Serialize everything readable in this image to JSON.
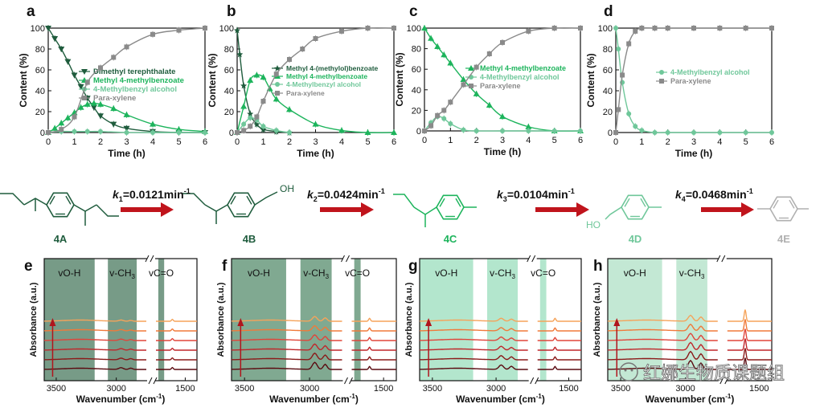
{
  "colors": {
    "dark_green": "#1f5c3d",
    "green": "#1db45c",
    "light_green": "#6fc79a",
    "grey": "#8a8a8a",
    "arrow_red": "#c0141c",
    "band_dark": "#5f8a72",
    "band_mid": "#8fc3a5",
    "band_light": "#a6e2c4"
  },
  "scheme": {
    "compounds": [
      {
        "label": "4A",
        "color": "#1f5c3d"
      },
      {
        "label": "4B",
        "color": "#1f5c3d"
      },
      {
        "label": "4C",
        "color": "#1db45c"
      },
      {
        "label": "4D",
        "color": "#6fc79a"
      },
      {
        "label": "4E",
        "color": "#b0b0b0"
      }
    ],
    "rates": [
      {
        "k": "k",
        "sub": "1",
        "value": "=0.0121min",
        "sup": "-1"
      },
      {
        "k": "k",
        "sub": "2",
        "value": "=0.0424min",
        "sup": "-1"
      },
      {
        "k": "k",
        "sub": "3",
        "value": "=0.0104min",
        "sup": "-1"
      },
      {
        "k": "k",
        "sub": "4",
        "value": "=0.0468min",
        "sup": "-1"
      }
    ],
    "oh_label": "OH",
    "ho_label": "HO"
  },
  "watermark": "红娜生物质课题组",
  "chart_data": [
    {
      "panel": "a",
      "type": "line",
      "xlabel": "Time (h)",
      "ylabel": "Content (%)",
      "xlim": [
        0,
        6
      ],
      "ylim": [
        0,
        100
      ],
      "xticks": [
        0,
        1,
        2,
        3,
        4,
        5,
        6
      ],
      "yticks": [
        0,
        20,
        40,
        60,
        80,
        100
      ],
      "legend_position": "center-right",
      "series": [
        {
          "name": "Dimethyl terephthalate",
          "color": "#1f5c3d",
          "marker": "tri-down",
          "x": [
            0,
            0.25,
            0.5,
            0.75,
            1,
            1.25,
            1.5,
            1.75,
            2,
            2.5,
            3,
            4,
            5,
            6
          ],
          "y": [
            100,
            90,
            80,
            68,
            55,
            44,
            33,
            24,
            16,
            8,
            4,
            1,
            0,
            0
          ]
        },
        {
          "name": "Methyl 4-methylbenzoate",
          "color": "#1db45c",
          "marker": "tri-up",
          "x": [
            0,
            0.25,
            0.5,
            0.75,
            1,
            1.25,
            1.5,
            1.75,
            2,
            2.5,
            3,
            4,
            5,
            6
          ],
          "y": [
            0,
            4,
            9,
            14,
            19,
            24,
            27,
            28,
            27,
            23,
            17,
            8,
            3,
            1
          ]
        },
        {
          "name": "4-Methylbenzyl alcohol",
          "color": "#6fc79a",
          "marker": "circle",
          "x": [
            0,
            0.5,
            1,
            1.5,
            2,
            3,
            4,
            5,
            6
          ],
          "y": [
            0,
            1,
            1,
            1,
            1,
            0,
            0,
            0,
            0
          ]
        },
        {
          "name": "Para-xylene",
          "color": "#8a8a8a",
          "marker": "square",
          "x": [
            0,
            0.5,
            1,
            1.5,
            2,
            2.5,
            3,
            4,
            5,
            6
          ],
          "y": [
            0,
            3,
            15,
            48,
            62,
            72,
            82,
            94,
            98,
            100
          ]
        }
      ]
    },
    {
      "panel": "b",
      "type": "line",
      "xlabel": "Time (h)",
      "ylabel": "Content (%)",
      "xlim": [
        0,
        6
      ],
      "ylim": [
        0,
        100
      ],
      "xticks": [
        0,
        1,
        2,
        3,
        4,
        5,
        6
      ],
      "yticks": [
        0,
        20,
        40,
        60,
        80,
        100
      ],
      "legend_position": "top-right",
      "series": [
        {
          "name": "Methyl 4-(methylol)benzoate",
          "color": "#1f5c3d",
          "marker": "star",
          "x": [
            0,
            0.1,
            0.25,
            0.5,
            0.75,
            1,
            1.5,
            2
          ],
          "y": [
            98,
            75,
            45,
            18,
            8,
            3,
            1,
            0
          ]
        },
        {
          "name": "Methyl 4-methylbenzoate",
          "color": "#1db45c",
          "marker": "tri-up",
          "x": [
            0,
            0.25,
            0.5,
            0.75,
            1,
            1.25,
            1.5,
            2,
            3,
            4,
            5,
            6
          ],
          "y": [
            0,
            25,
            50,
            55,
            53,
            42,
            32,
            22,
            8,
            2,
            0,
            0
          ]
        },
        {
          "name": "4-Methylbenzyl alcohol",
          "color": "#6fc79a",
          "marker": "circle",
          "x": [
            0,
            0.25,
            0.5,
            0.75,
            1,
            1.5,
            2
          ],
          "y": [
            0,
            8,
            14,
            12,
            6,
            2,
            0
          ]
        },
        {
          "name": "Para-xylene",
          "color": "#8a8a8a",
          "marker": "square",
          "x": [
            0,
            0.25,
            0.5,
            0.75,
            1,
            1.5,
            2,
            2.5,
            3,
            4,
            5,
            6
          ],
          "y": [
            0,
            2,
            6,
            15,
            30,
            56,
            70,
            80,
            90,
            97,
            100,
            100
          ]
        }
      ]
    },
    {
      "panel": "c",
      "type": "line",
      "xlabel": "Time (h)",
      "ylabel": "Content (%)",
      "xlim": [
        0,
        6
      ],
      "ylim": [
        0,
        100
      ],
      "xticks": [
        0,
        1,
        2,
        3,
        4,
        5,
        6
      ],
      "yticks": [
        0,
        20,
        40,
        60,
        80,
        100
      ],
      "legend_position": "center-right",
      "series": [
        {
          "name": "Methyl 4-methylbenzoate",
          "color": "#1db45c",
          "marker": "tri-up",
          "x": [
            0,
            0.25,
            0.5,
            0.75,
            1,
            1.5,
            2,
            2.5,
            3,
            4,
            5,
            6
          ],
          "y": [
            100,
            90,
            82,
            74,
            66,
            50,
            36,
            25,
            14,
            4,
            0,
            0
          ]
        },
        {
          "name": "4-Methylbenzyl alcohol",
          "color": "#6fc79a",
          "marker": "circle",
          "x": [
            0,
            0.25,
            0.5,
            0.75,
            1,
            1.5,
            2,
            3,
            4,
            5,
            6
          ],
          "y": [
            0,
            8,
            14,
            12,
            7,
            1,
            0,
            0,
            0,
            0,
            0
          ]
        },
        {
          "name": "Para-xylene",
          "color": "#8a8a8a",
          "marker": "square",
          "x": [
            0,
            0.25,
            0.5,
            0.75,
            1,
            1.5,
            2,
            2.5,
            3,
            4,
            5,
            6
          ],
          "y": [
            0,
            5,
            15,
            20,
            28,
            45,
            62,
            75,
            86,
            97,
            100,
            100
          ]
        }
      ]
    },
    {
      "panel": "d",
      "type": "line",
      "xlabel": "Time (h)",
      "ylabel": "Content (%)",
      "xlim": [
        0,
        6
      ],
      "ylim": [
        0,
        100
      ],
      "xticks": [
        0,
        1,
        2,
        3,
        4,
        5,
        6
      ],
      "yticks": [
        0,
        20,
        40,
        60,
        80,
        100
      ],
      "legend_position": "center-right",
      "series": [
        {
          "name": "4-Methylbenzyl alcohol",
          "color": "#6fc79a",
          "marker": "circle",
          "x": [
            0,
            0.1,
            0.25,
            0.5,
            0.75,
            1,
            1.5,
            2,
            3,
            4,
            5,
            6
          ],
          "y": [
            100,
            80,
            48,
            18,
            6,
            2,
            0,
            0,
            0,
            0,
            0,
            0
          ]
        },
        {
          "name": "Para-xylene",
          "color": "#8a8a8a",
          "marker": "square",
          "x": [
            0,
            0.1,
            0.25,
            0.5,
            0.75,
            1,
            1.5,
            2,
            3,
            4,
            5,
            6
          ],
          "y": [
            0,
            22,
            55,
            85,
            97,
            100,
            100,
            100,
            100,
            100,
            100,
            100
          ]
        }
      ]
    },
    {
      "panel": "e",
      "type": "line",
      "xlabel": "Wavenumber (cm-1)",
      "ylabel": "Absorbance (a.u.)",
      "xticks": [
        3500,
        3000,
        1500
      ],
      "bands": [
        {
          "label": "vO-H",
          "color": "#5f8a72"
        },
        {
          "label": "v-CH3",
          "color": "#5f8a72"
        },
        {
          "label": "vC=O",
          "color": "#5f8a72"
        }
      ],
      "traces": 6,
      "arrow": true,
      "peaks": {
        "ch": [
          2,
          3
        ],
        "co": 2
      }
    },
    {
      "panel": "f",
      "type": "line",
      "xlabel": "Wavenumber (cm-1)",
      "ylabel": "Absorbance (a.u.)",
      "xticks": [
        3500,
        3000,
        1500
      ],
      "bands": [
        {
          "label": "vO-H",
          "color": "#6a9a7e"
        },
        {
          "label": "v-CH3",
          "color": "#6a9a7e"
        },
        {
          "label": "vC=O",
          "color": "#6a9a7e"
        }
      ],
      "traces": 6,
      "arrow": true,
      "peaks": {
        "ch": [
          8,
          7
        ],
        "co": 3
      }
    },
    {
      "panel": "g",
      "type": "line",
      "xlabel": "Wavenumber (cm-1)",
      "ylabel": "Absorbance (a.u.)",
      "xticks": [
        3500,
        3000,
        1500
      ],
      "bands": [
        {
          "label": "vO-H",
          "color": "#a6e2c4"
        },
        {
          "label": "v-CH3",
          "color": "#a6e2c4"
        },
        {
          "label": "vC=O",
          "color": "#a6e2c4"
        }
      ],
      "traces": 6,
      "arrow": true,
      "peaks": {
        "ch": [
          5,
          4
        ],
        "co": 3
      }
    },
    {
      "panel": "h",
      "type": "line",
      "xlabel": "Wavenumber (cm-1)",
      "ylabel": "Absorbance (a.u.)",
      "xticks": [
        3500,
        3000,
        1500
      ],
      "bands": [
        {
          "label": "vO-H",
          "color": "#b8e4cc"
        },
        {
          "label": "v-CH3",
          "color": "#b8e4cc"
        }
      ],
      "traces": 6,
      "arrow": true,
      "peaks": {
        "ch": [
          10,
          9
        ],
        "co": 12
      }
    }
  ]
}
